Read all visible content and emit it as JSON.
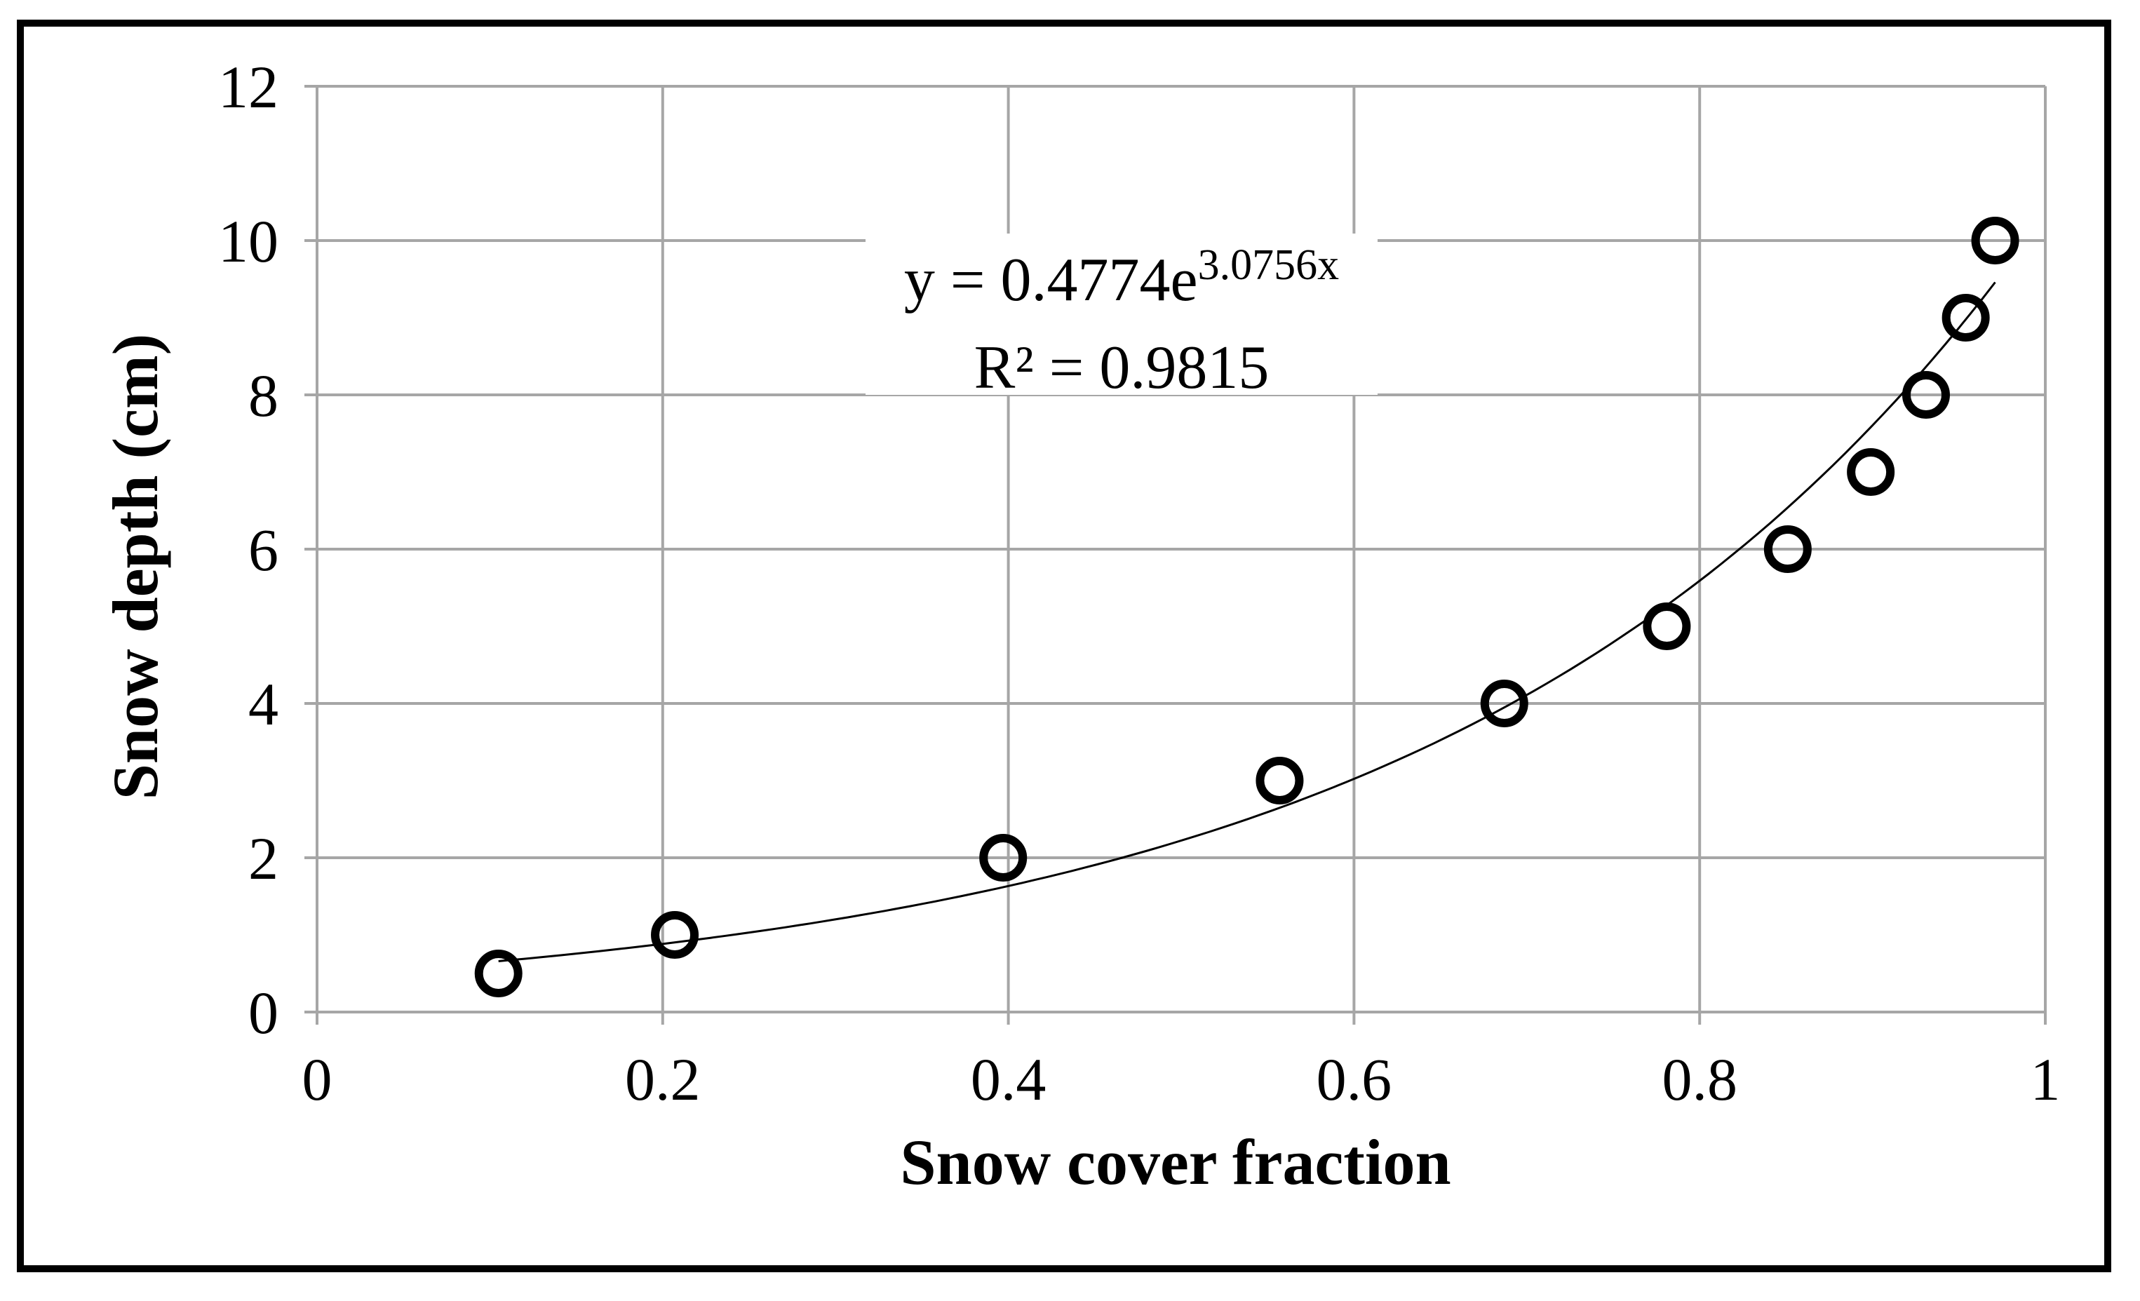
{
  "chart_data": {
    "type": "scatter",
    "xlabel": "Snow cover fraction",
    "ylabel": "Snow depth (cm)",
    "xlim": [
      0,
      1
    ],
    "ylim": [
      0,
      12
    ],
    "x_ticks": [
      "0",
      "0.2",
      "0.4",
      "0.6",
      "0.8",
      "1"
    ],
    "y_ticks": [
      "0",
      "2",
      "4",
      "6",
      "8",
      "10",
      "12"
    ],
    "grid": true,
    "legend": "none",
    "series": [
      {
        "marker": "open-circle",
        "x": [
          0.105,
          0.207,
          0.397,
          0.557,
          0.687,
          0.781,
          0.851,
          0.899,
          0.931,
          0.954,
          0.971
        ],
        "y": [
          0.5,
          1.0,
          2.0,
          3.0,
          4.0,
          5.0,
          6.0,
          7.0,
          8.0,
          9.0,
          10.0
        ]
      }
    ],
    "trendline": {
      "type": "exponential",
      "a": 0.4774,
      "b": 3.0756,
      "x_range": [
        0.105,
        0.971
      ]
    },
    "annotation": {
      "equation_prefix": "y = 0.4774e",
      "equation_exponent": "3.0756x",
      "r_squared": "R² = 0.9815"
    },
    "colors": {
      "markers": "#000000",
      "gridlines": "#a6a6a6",
      "trendline": "#000000"
    }
  }
}
